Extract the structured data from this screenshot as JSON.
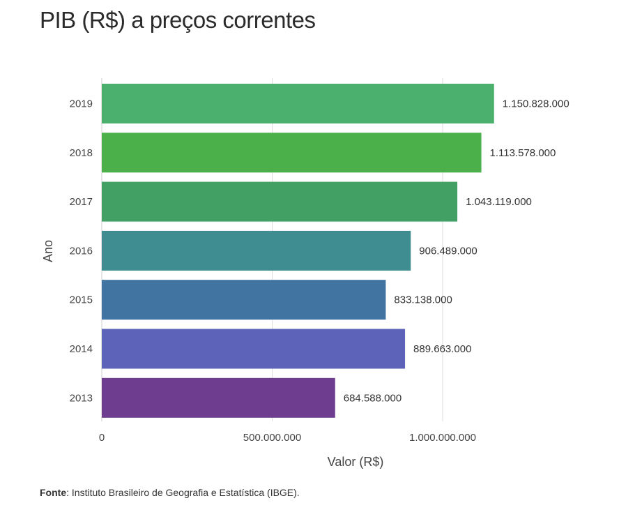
{
  "chart_data": {
    "type": "bar",
    "orientation": "horizontal",
    "title": "PIB (R$) a preços correntes",
    "xlabel": "Valor (R$)",
    "ylabel": "Ano",
    "categories": [
      "2019",
      "2018",
      "2017",
      "2016",
      "2015",
      "2014",
      "2013"
    ],
    "values": [
      1150828000,
      1113578000,
      1043119000,
      906489000,
      833138000,
      889663000,
      684588000
    ],
    "value_labels": [
      "1.150.828.000",
      "1.113.578.000",
      "1.043.119.000",
      "906.489.000",
      "833.138.000",
      "889.663.000",
      "684.588.000"
    ],
    "colors": [
      "#4bb06e",
      "#4cb04a",
      "#43a065",
      "#3f8d90",
      "#4274a2",
      "#5c63b8",
      "#6e3d8f"
    ],
    "xlim": [
      0,
      1250000000
    ],
    "x_ticks": [
      0,
      500000000,
      1000000000
    ],
    "x_tick_labels": [
      "0",
      "500.000.000",
      "1.000.000.000"
    ],
    "grid": true,
    "legend": "none"
  },
  "source": {
    "label": "Fonte",
    "text": ": Instituto Brasileiro de Geografia e Estatística (IBGE)."
  }
}
